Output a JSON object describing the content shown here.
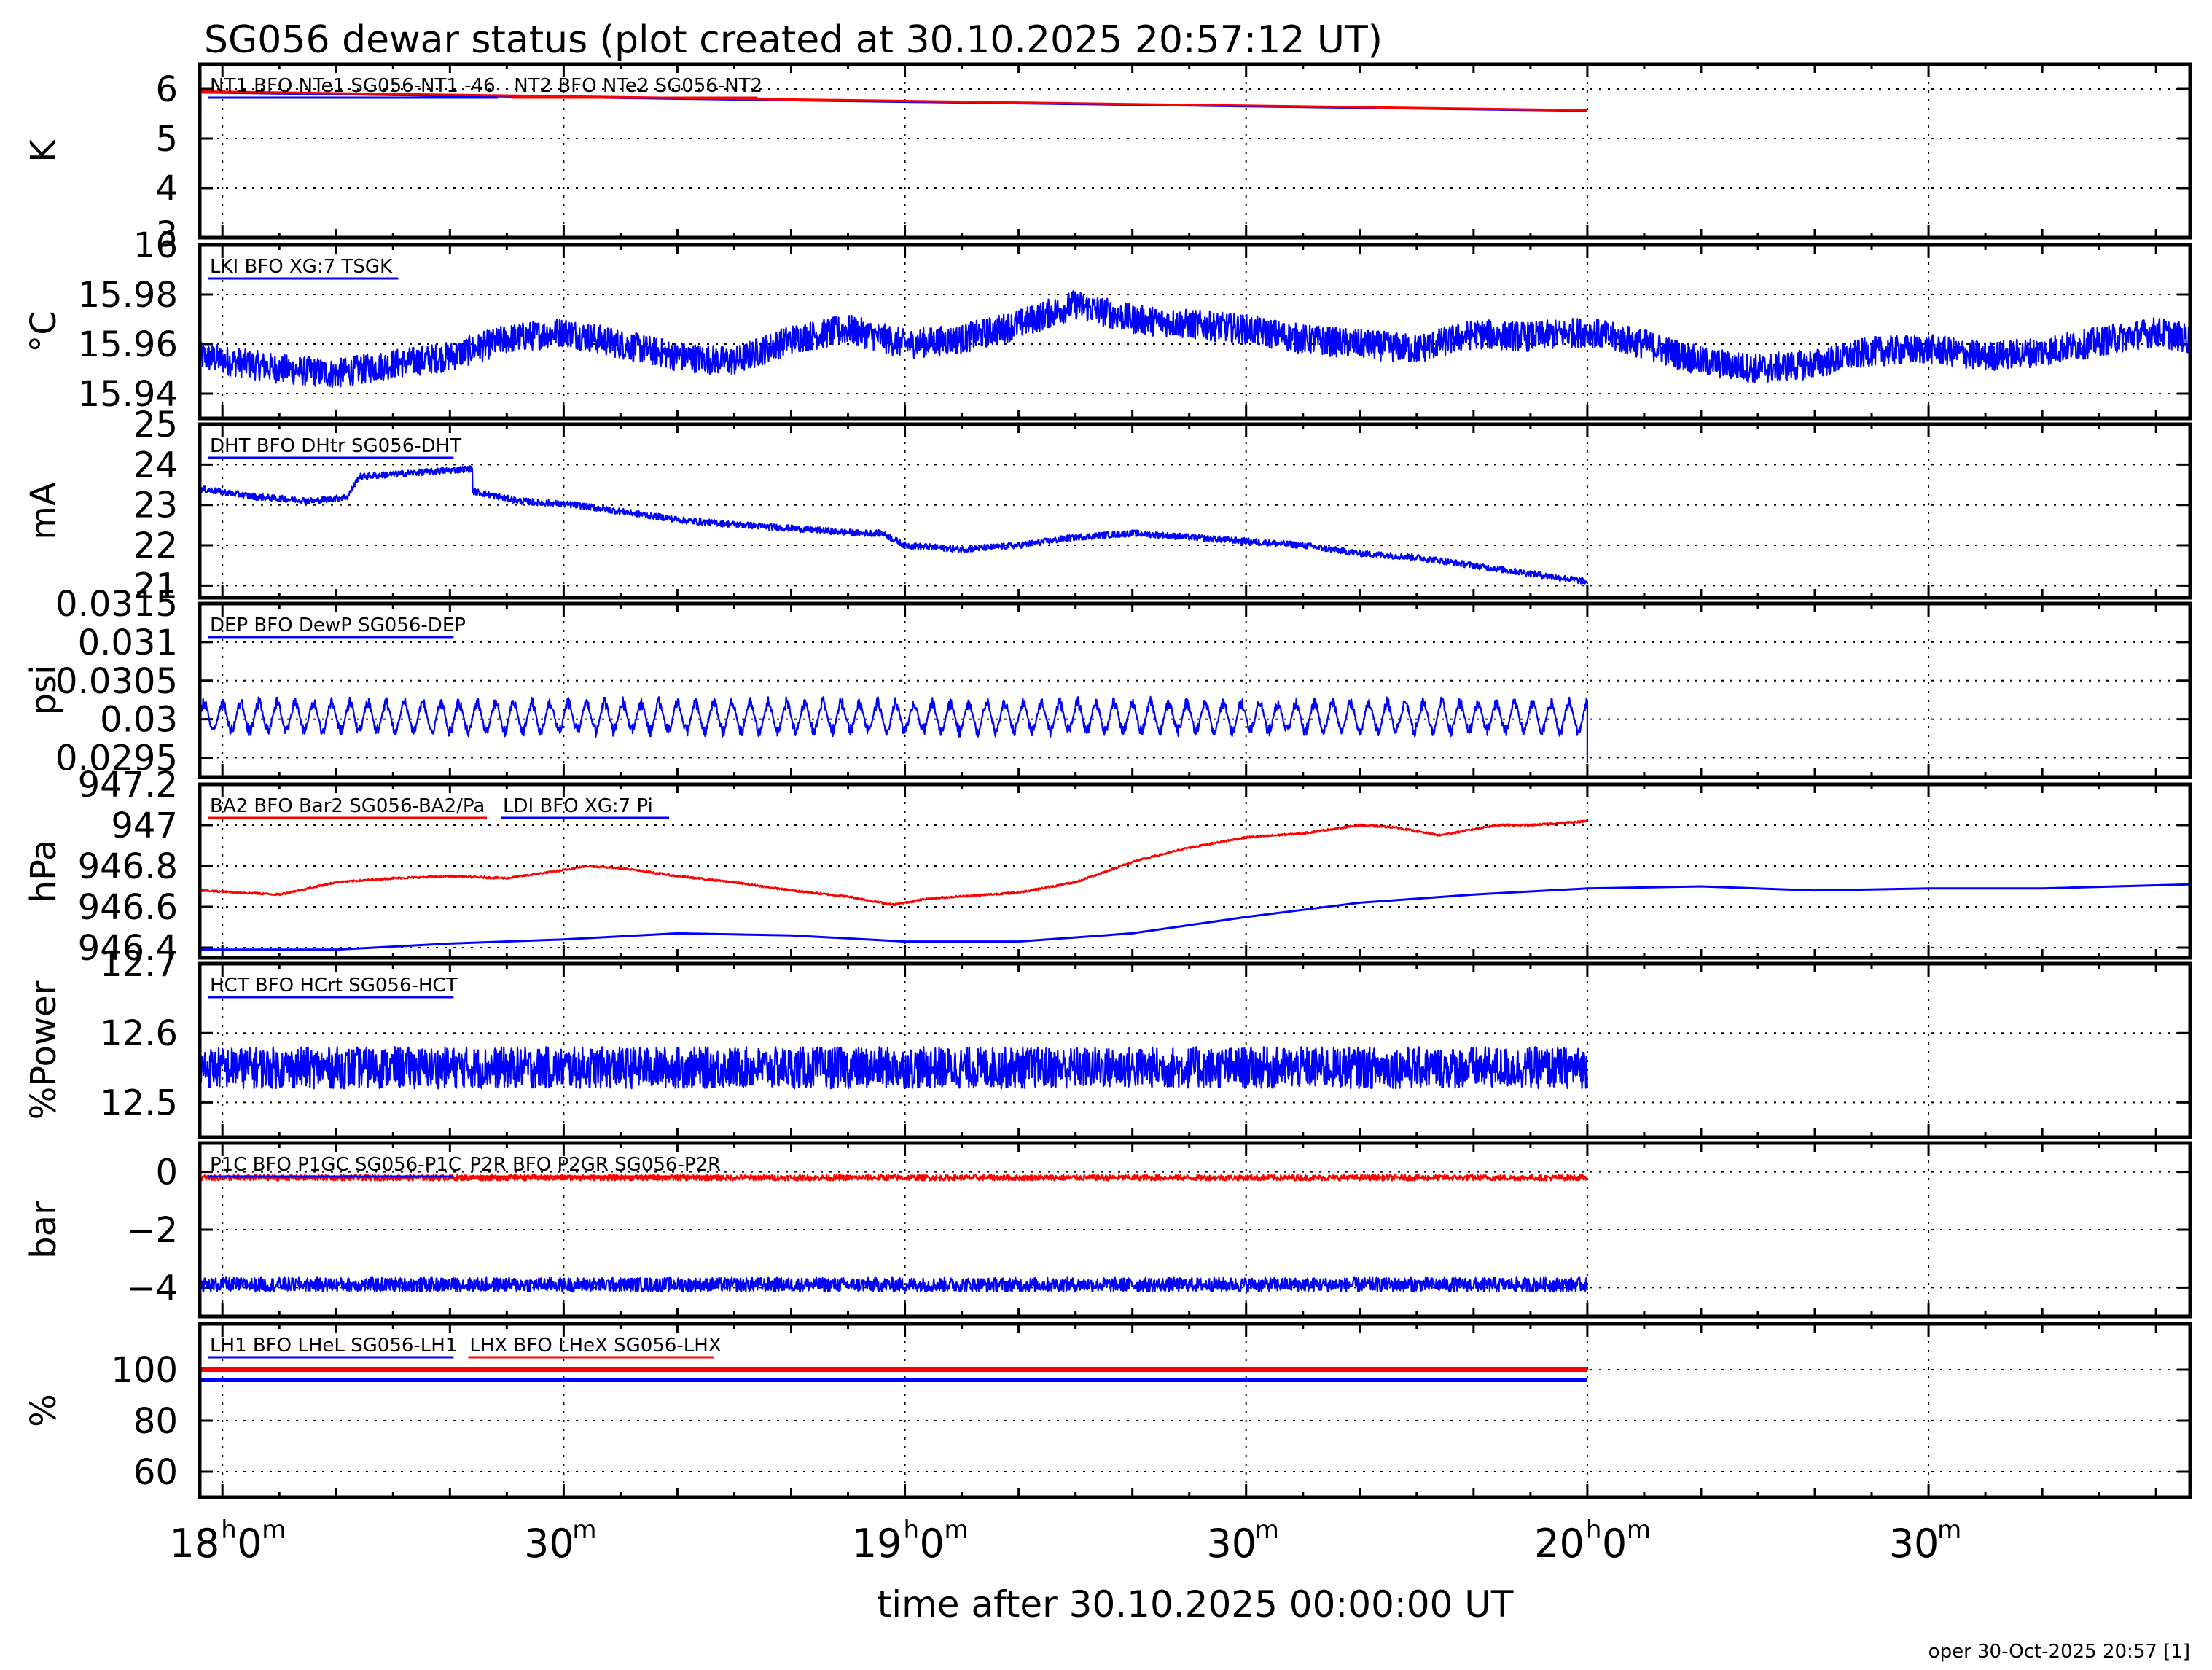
{
  "title": "SG056 dewar status (plot created at 30.10.2025 20:57:12 UT)",
  "footer": "oper 30-Oct-2025 20:57 [1]",
  "colors": {
    "red": "#ff0000",
    "blue": "#0000ff",
    "grid": "#000000"
  },
  "chart_data": {
    "type": "line",
    "xlabel": "time after 30.10.2025 00:00:00 UT",
    "x_range_min": [
      1078,
      1253
    ],
    "x_ticks_major": [
      {
        "value": 1080,
        "h": "18",
        "m": "0"
      },
      {
        "value": 1110,
        "h": "",
        "m": "30"
      },
      {
        "value": 1140,
        "h": "19",
        "m": "0"
      },
      {
        "value": 1170,
        "h": "",
        "m": "30"
      },
      {
        "value": 1200,
        "h": "20",
        "m": "0"
      },
      {
        "value": 1230,
        "h": "",
        "m": "30"
      }
    ],
    "x_minor_step": 10,
    "panels": [
      {
        "ylabel": "K",
        "ylim": [
          3,
          6.5
        ],
        "yticks": [
          {
            "v": 3,
            "t": "3"
          },
          {
            "v": 4,
            "t": "4"
          },
          {
            "v": 5,
            "t": "5"
          },
          {
            "v": 6,
            "t": "6"
          }
        ],
        "legend": [
          {
            "text": "NT1 BFO NTe1 SG056-NT1 -46",
            "color": "#0000ff"
          },
          {
            "text": "NT2 BFO NTe2 SG056-NT2",
            "color": "#ff0000"
          }
        ],
        "series": [
          {
            "name": "NT1 BFO NTe1 SG056-NT1 -46",
            "color": "#0000ff",
            "x": [
              1078,
              1200
            ],
            "y": [
              5.93,
              5.56
            ]
          },
          {
            "name": "NT2 BFO NTe2 SG056-NT2",
            "color": "#ff0000",
            "x": [
              1078,
              1200
            ],
            "y": [
              5.95,
              5.57
            ]
          }
        ]
      },
      {
        "ylabel": "°C",
        "ylim": [
          15.93,
          16.0
        ],
        "yticks": [
          {
            "v": 15.94,
            "t": "15.94"
          },
          {
            "v": 15.96,
            "t": "15.96"
          },
          {
            "v": 15.98,
            "t": "15.98"
          },
          {
            "v": 16.0,
            "t": "16"
          }
        ],
        "legend": [
          {
            "text": "LKI BFO XG:7 TSGK",
            "color": "#0000ff"
          }
        ],
        "series": [
          {
            "name": "LKI BFO XG:7 TSGK",
            "color": "#0000ff",
            "x": [
              1078,
              1085,
              1090,
              1095,
              1100,
              1105,
              1110,
              1115,
              1120,
              1125,
              1130,
              1135,
              1140,
              1145,
              1150,
              1155,
              1160,
              1165,
              1170,
              1175,
              1180,
              1185,
              1190,
              1195,
              1200,
              1205,
              1210,
              1215,
              1220,
              1225,
              1230,
              1235,
              1240,
              1245,
              1250,
              1253
            ],
            "y": [
              15.955,
              15.95,
              15.948,
              15.952,
              15.955,
              15.962,
              15.965,
              15.96,
              15.955,
              15.953,
              15.962,
              15.966,
              15.96,
              15.962,
              15.968,
              15.976,
              15.97,
              15.968,
              15.966,
              15.962,
              15.96,
              15.958,
              15.964,
              15.963,
              15.965,
              15.96,
              15.953,
              15.95,
              15.952,
              15.957,
              15.958,
              15.955,
              15.957,
              15.961,
              15.965,
              15.962
            ],
            "noise": 0.006
          }
        ]
      },
      {
        "ylabel": "mA",
        "ylim": [
          20.7,
          25.0
        ],
        "yticks": [
          {
            "v": 21,
            "t": "21"
          },
          {
            "v": 22,
            "t": "22"
          },
          {
            "v": 23,
            "t": "23"
          },
          {
            "v": 24,
            "t": "24"
          },
          {
            "v": 25,
            "t": "25"
          }
        ],
        "legend": [
          {
            "text": "DHT BFO DHtr SG056-DHT",
            "color": "#0000ff"
          }
        ],
        "series": [
          {
            "name": "DHT BFO DHtr SG056-DHT",
            "color": "#0000ff",
            "x": [
              1078,
              1083,
              1088,
              1091,
              1092,
              1097,
              1102,
              1101,
              1106,
              1111,
              1116,
              1121,
              1126,
              1131,
              1136,
              1138,
              1140,
              1145,
              1150,
              1155,
              1160,
              1165,
              1170,
              1175,
              1180,
              1185,
              1190,
              1195,
              1200
            ],
            "y": [
              23.4,
              23.2,
              23.1,
              23.2,
              23.7,
              23.8,
              23.9,
              23.4,
              23.1,
              23.0,
              22.8,
              22.6,
              22.5,
              22.4,
              22.3,
              22.3,
              22.0,
              21.9,
              22.0,
              22.2,
              22.3,
              22.2,
              22.1,
              22.0,
              21.8,
              21.7,
              21.5,
              21.3,
              21.1
            ],
            "noise": 0.08
          }
        ]
      },
      {
        "ylabel": "psi",
        "ylim": [
          0.02925,
          0.0315
        ],
        "yticks": [
          {
            "v": 0.0295,
            "t": "0.0295"
          },
          {
            "v": 0.03,
            "t": "0.03"
          },
          {
            "v": 0.0305,
            "t": "0.0305"
          },
          {
            "v": 0.031,
            "t": "0.031"
          },
          {
            "v": 0.0315,
            "t": "0.0315"
          }
        ],
        "legend": [
          {
            "text": "DEP BFO DewP SG056-DEP",
            "color": "#0000ff"
          }
        ],
        "series": [
          {
            "name": "DEP BFO DewP SG056-DEP",
            "color": "#0000ff",
            "x": [
              1078,
              1200
            ],
            "y": [
              0.03003,
              0.03003
            ],
            "osc_amp": 0.00018,
            "osc_period_min": 1.6,
            "x_end_drop": [
              1200,
              0.02945
            ]
          }
        ]
      },
      {
        "ylabel": "hPa",
        "ylim": [
          946.35,
          947.2
        ],
        "yticks": [
          {
            "v": 946.4,
            "t": "946.4"
          },
          {
            "v": 946.6,
            "t": "946.6"
          },
          {
            "v": 946.8,
            "t": "946.8"
          },
          {
            "v": 947,
            "t": "947"
          },
          {
            "v": 947.2,
            "t": "947.2"
          }
        ],
        "legend": [
          {
            "text": "BA2 BFO Bar2 SG056-BA2/Pa",
            "color": "#ff0000"
          },
          {
            "text": "LDI BFO XG:7 Pi",
            "color": "#0000ff"
          }
        ],
        "series": [
          {
            "name": "BA2 BFO Bar2 SG056-BA2/Pa",
            "color": "#ff0000",
            "x": [
              1078,
              1085,
              1090,
              1095,
              1100,
              1105,
              1110,
              1112,
              1115,
              1120,
              1125,
              1130,
              1135,
              1139,
              1142,
              1150,
              1155,
              1160,
              1165,
              1170,
              1175,
              1180,
              1183,
              1187,
              1192,
              1195,
              1200
            ],
            "y": [
              946.68,
              946.66,
              946.72,
              946.74,
              946.75,
              946.74,
              946.78,
              946.8,
              946.79,
              946.75,
              946.72,
              946.68,
              946.65,
              946.61,
              946.64,
              946.67,
              946.72,
              946.82,
              946.89,
              946.94,
              946.96,
              947.0,
              946.99,
              946.95,
              947.0,
              947.0,
              947.02
            ],
            "noise": 0.005
          },
          {
            "name": "LDI BFO XG:7 Pi",
            "color": "#0000ff",
            "x": [
              1078,
              1090,
              1100,
              1110,
              1120,
              1130,
              1140,
              1150,
              1160,
              1170,
              1180,
              1190,
              1200,
              1210,
              1220,
              1230,
              1240,
              1253
            ],
            "y": [
              946.39,
              946.39,
              946.42,
              946.44,
              946.47,
              946.46,
              946.43,
              946.43,
              946.47,
              946.55,
              946.62,
              946.66,
              946.69,
              946.7,
              946.68,
              946.69,
              946.69,
              946.71
            ]
          }
        ]
      },
      {
        "ylabel": "%Power",
        "ylim": [
          12.45,
          12.7
        ],
        "yticks": [
          {
            "v": 12.5,
            "t": "12.5"
          },
          {
            "v": 12.6,
            "t": "12.6"
          },
          {
            "v": 12.7,
            "t": "12.7"
          }
        ],
        "legend": [
          {
            "text": "HCT BFO HCrt SG056-HCT",
            "color": "#0000ff"
          }
        ],
        "series": [
          {
            "name": "HCT BFO HCrt SG056-HCT",
            "color": "#0000ff",
            "x": [
              1078,
              1200
            ],
            "y": [
              12.55,
              12.55
            ],
            "noise": 0.03
          }
        ]
      },
      {
        "ylabel": "bar",
        "ylim": [
          -5.0,
          1.0
        ],
        "yticks": [
          {
            "v": -4,
            "t": "−4"
          },
          {
            "v": -2,
            "t": "−2"
          },
          {
            "v": 0,
            "t": "0"
          }
        ],
        "legend": [
          {
            "text": "P1C BFO P1GC SG056-P1C",
            "color": "#0000ff"
          },
          {
            "text": "P2R BFO P2GR SG056-P2R",
            "color": "#ff0000"
          }
        ],
        "series": [
          {
            "name": "P1C BFO P1GC SG056-P1C",
            "color": "#0000ff",
            "x": [
              1078,
              1200
            ],
            "y": [
              -3.9,
              -3.9
            ],
            "noise": 0.25
          },
          {
            "name": "P2R BFO P2GR SG056-P2R",
            "color": "#ff0000",
            "x": [
              1078,
              1200
            ],
            "y": [
              -0.2,
              -0.2
            ],
            "noise": 0.1
          }
        ]
      },
      {
        "ylabel": "%",
        "ylim": [
          50,
          118
        ],
        "yticks": [
          {
            "v": 60,
            "t": "60"
          },
          {
            "v": 80,
            "t": "80"
          },
          {
            "v": 100,
            "t": "100"
          }
        ],
        "legend": [
          {
            "text": "LH1 BFO LHeL SG056-LH1",
            "color": "#0000ff"
          },
          {
            "text": "LHX BFO LHeX SG056-LHX",
            "color": "#ff0000"
          }
        ],
        "series": [
          {
            "name": "LH1 BFO LHeL SG056-LH1",
            "color": "#0000ff",
            "x": [
              1078,
              1200
            ],
            "y": [
              96,
              96
            ]
          },
          {
            "name": "LHX BFO LHeX SG056-LHX",
            "color": "#ff0000",
            "x": [
              1078,
              1200
            ],
            "y": [
              100,
              100
            ]
          }
        ]
      }
    ]
  }
}
